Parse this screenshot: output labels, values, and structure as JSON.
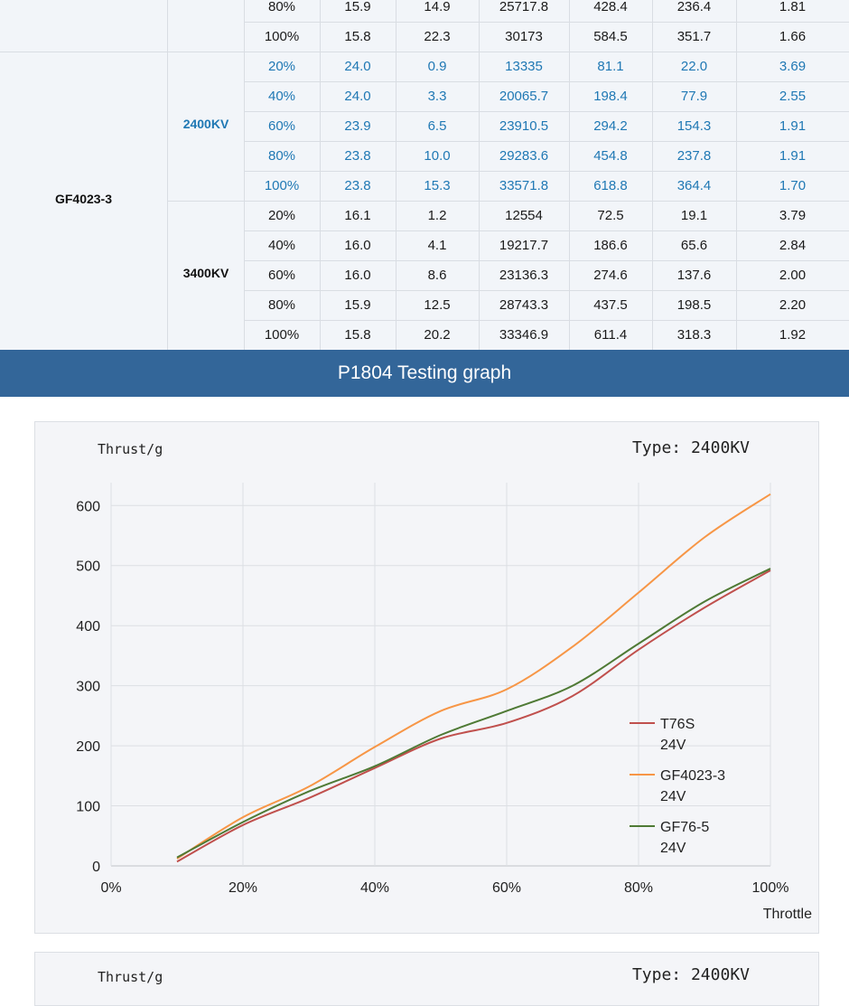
{
  "table": {
    "motor_label": "GF4023-3",
    "rows_top": [
      {
        "throttle": "80%",
        "voltage": "15.9",
        "current": "14.9",
        "rpm": "25717.8",
        "thrust": "428.4",
        "power": "236.4",
        "efficiency": "1.81"
      },
      {
        "throttle": "100%",
        "voltage": "15.8",
        "current": "22.3",
        "rpm": "30173",
        "thrust": "584.5",
        "power": "351.7",
        "efficiency": "1.66"
      }
    ],
    "groups": [
      {
        "kv": "2400KV",
        "highlight": true,
        "rows": [
          {
            "throttle": "20%",
            "voltage": "24.0",
            "current": "0.9",
            "rpm": "13335",
            "thrust": "81.1",
            "power": "22.0",
            "efficiency": "3.69"
          },
          {
            "throttle": "40%",
            "voltage": "24.0",
            "current": "3.3",
            "rpm": "20065.7",
            "thrust": "198.4",
            "power": "77.9",
            "efficiency": "2.55"
          },
          {
            "throttle": "60%",
            "voltage": "23.9",
            "current": "6.5",
            "rpm": "23910.5",
            "thrust": "294.2",
            "power": "154.3",
            "efficiency": "1.91"
          },
          {
            "throttle": "80%",
            "voltage": "23.8",
            "current": "10.0",
            "rpm": "29283.6",
            "thrust": "454.8",
            "power": "237.8",
            "efficiency": "1.91"
          },
          {
            "throttle": "100%",
            "voltage": "23.8",
            "current": "15.3",
            "rpm": "33571.8",
            "thrust": "618.8",
            "power": "364.4",
            "efficiency": "1.70"
          }
        ]
      },
      {
        "kv": "3400KV",
        "highlight": false,
        "rows": [
          {
            "throttle": "20%",
            "voltage": "16.1",
            "current": "1.2",
            "rpm": "12554",
            "thrust": "72.5",
            "power": "19.1",
            "efficiency": "3.79"
          },
          {
            "throttle": "40%",
            "voltage": "16.0",
            "current": "4.1",
            "rpm": "19217.7",
            "thrust": "186.6",
            "power": "65.6",
            "efficiency": "2.84"
          },
          {
            "throttle": "60%",
            "voltage": "16.0",
            "current": "8.6",
            "rpm": "23136.3",
            "thrust": "274.6",
            "power": "137.6",
            "efficiency": "2.00"
          },
          {
            "throttle": "80%",
            "voltage": "15.9",
            "current": "12.5",
            "rpm": "28743.3",
            "thrust": "437.5",
            "power": "198.5",
            "efficiency": "2.20"
          },
          {
            "throttle": "100%",
            "voltage": "15.8",
            "current": "20.2",
            "rpm": "33346.9",
            "thrust": "611.4",
            "power": "318.3",
            "efficiency": "1.92"
          }
        ]
      }
    ]
  },
  "banner": {
    "title": "P1804 Testing graph"
  },
  "chart_header": {
    "ylabel": "Thrust/g",
    "type_label": "Type: 2400KV"
  },
  "chart_data": {
    "type": "line",
    "ylabel": "Thrust/g",
    "xlabel": "Throttle",
    "type_label": "Type: 2400KV",
    "x_ticks": [
      "0%",
      "20%",
      "40%",
      "60%",
      "80%",
      "100%"
    ],
    "y_ticks": [
      0,
      100,
      200,
      300,
      400,
      500,
      600
    ],
    "xlim": [
      0,
      100
    ],
    "ylim": [
      0,
      620
    ],
    "grid": true,
    "legend_position": "right",
    "series": [
      {
        "name": "T76S",
        "sub": "24V",
        "color": "#c0504d",
        "x": [
          10,
          20,
          30,
          40,
          50,
          60,
          70,
          80,
          90,
          100
        ],
        "y": [
          7,
          68,
          113,
          163,
          212,
          238,
          283,
          360,
          430,
          492
        ]
      },
      {
        "name": "GF4023-3",
        "sub": "24V",
        "color": "#f79646",
        "x": [
          10,
          20,
          30,
          40,
          50,
          60,
          70,
          80,
          90,
          100
        ],
        "y": [
          12,
          81,
          132,
          198,
          258,
          294,
          365,
          455,
          547,
          619
        ]
      },
      {
        "name": "GF76-5",
        "sub": "24V",
        "color": "#4f7a35",
        "x": [
          10,
          20,
          30,
          40,
          50,
          60,
          70,
          80,
          90,
          100
        ],
        "y": [
          14,
          73,
          124,
          166,
          218,
          258,
          300,
          370,
          440,
          495
        ]
      }
    ]
  },
  "chart2_header": {
    "ylabel": "Thrust/g",
    "type_label": "Type: 2400KV"
  }
}
